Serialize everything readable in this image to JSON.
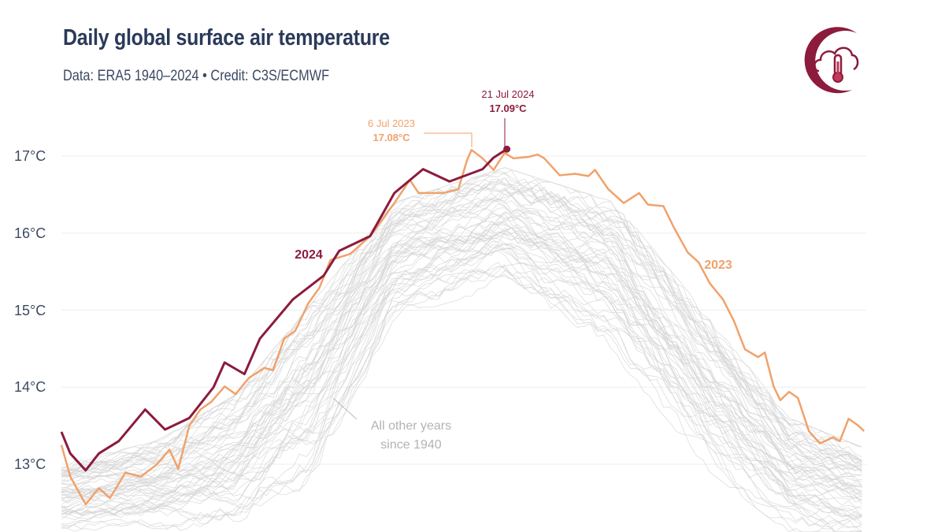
{
  "header": {
    "title": "Daily global surface air temperature",
    "subtitle": "Data: ERA5 1940–2024 • Credit: C3S/ECMWF",
    "logo_icon": "cloud-thermometer-icon"
  },
  "chart_data": {
    "type": "line",
    "title": "Daily global surface air temperature",
    "x_unit": "day of year",
    "xlim": [
      1,
      366
    ],
    "ylim": [
      12.12,
      17.6
    ],
    "y_ticks": [
      13,
      14,
      15,
      16,
      17
    ],
    "y_tick_labels": [
      "13°C",
      "14°C",
      "15°C",
      "16°C",
      "17°C"
    ],
    "grid": "horizontal",
    "colors": {
      "2024": "#8c1b3c",
      "2023": "#f0a26c",
      "other": "#d4d4d4",
      "title": "#2b3a5a"
    },
    "series": [
      {
        "name": "2024",
        "x": [
          1,
          5,
          12,
          18,
          27,
          39,
          48,
          59,
          70,
          75,
          84,
          91,
          106,
          120,
          127,
          141,
          152,
          165,
          177,
          192,
          197,
          203
        ],
        "y": [
          13.42,
          13.14,
          12.92,
          13.14,
          13.3,
          13.71,
          13.45,
          13.6,
          14.0,
          14.32,
          14.17,
          14.63,
          15.14,
          15.45,
          15.77,
          15.96,
          16.52,
          16.83,
          16.67,
          16.83,
          16.98,
          17.09
        ]
      },
      {
        "name": "2023",
        "x": [
          1,
          5,
          12,
          18,
          23,
          30,
          37,
          44,
          50,
          54,
          59,
          64,
          69,
          75,
          80,
          86,
          93,
          97,
          102,
          107,
          113,
          118,
          123,
          132,
          141,
          152,
          159,
          163,
          174,
          181,
          185,
          187,
          192,
          197,
          202,
          206,
          213,
          217,
          220,
          227,
          234,
          240,
          243,
          249,
          256,
          263,
          267,
          274,
          279,
          285,
          290,
          295,
          301,
          306,
          311,
          317,
          320,
          324,
          327,
          331,
          335,
          340,
          345,
          351,
          354,
          358,
          362,
          365
        ],
        "y": [
          13.25,
          12.84,
          12.48,
          12.69,
          12.56,
          12.89,
          12.84,
          12.99,
          13.19,
          12.94,
          13.5,
          13.71,
          13.81,
          14.01,
          13.91,
          14.12,
          14.25,
          14.22,
          14.63,
          14.73,
          15.09,
          15.29,
          15.65,
          15.73,
          15.96,
          16.39,
          16.69,
          16.52,
          16.52,
          16.57,
          16.95,
          17.08,
          16.97,
          16.82,
          17.04,
          16.97,
          16.99,
          17.02,
          16.97,
          16.75,
          16.77,
          16.74,
          16.82,
          16.57,
          16.39,
          16.52,
          16.37,
          16.35,
          16.06,
          15.75,
          15.62,
          15.35,
          15.14,
          14.86,
          14.49,
          14.39,
          14.45,
          14.01,
          13.83,
          13.94,
          13.86,
          13.43,
          13.27,
          13.35,
          13.3,
          13.59,
          13.51,
          13.43
        ]
      }
    ],
    "other_years_envelope": {
      "x": [
        1,
        44,
        80,
        116,
        152,
        202,
        252,
        295,
        331,
        366
      ],
      "low": [
        12.1,
        12.1,
        12.1,
        12.75,
        14.9,
        15.3,
        14.4,
        12.9,
        12.1,
        11.9
      ],
      "high": [
        13.0,
        13.3,
        13.9,
        15.14,
        16.4,
        16.85,
        16.4,
        14.9,
        13.6,
        13.2
      ]
    },
    "annotations": {
      "peak_2024": {
        "date": "21 Jul 2024",
        "value": "17.09°C",
        "x": 203,
        "y": 17.09
      },
      "peak_2023": {
        "date": "6 Jul 2023",
        "value": "17.08°C",
        "x": 187,
        "y": 17.08
      },
      "label_2024": "2024",
      "label_2023": "2023",
      "other_line1": "All other years",
      "other_line2": "since 1940"
    }
  }
}
